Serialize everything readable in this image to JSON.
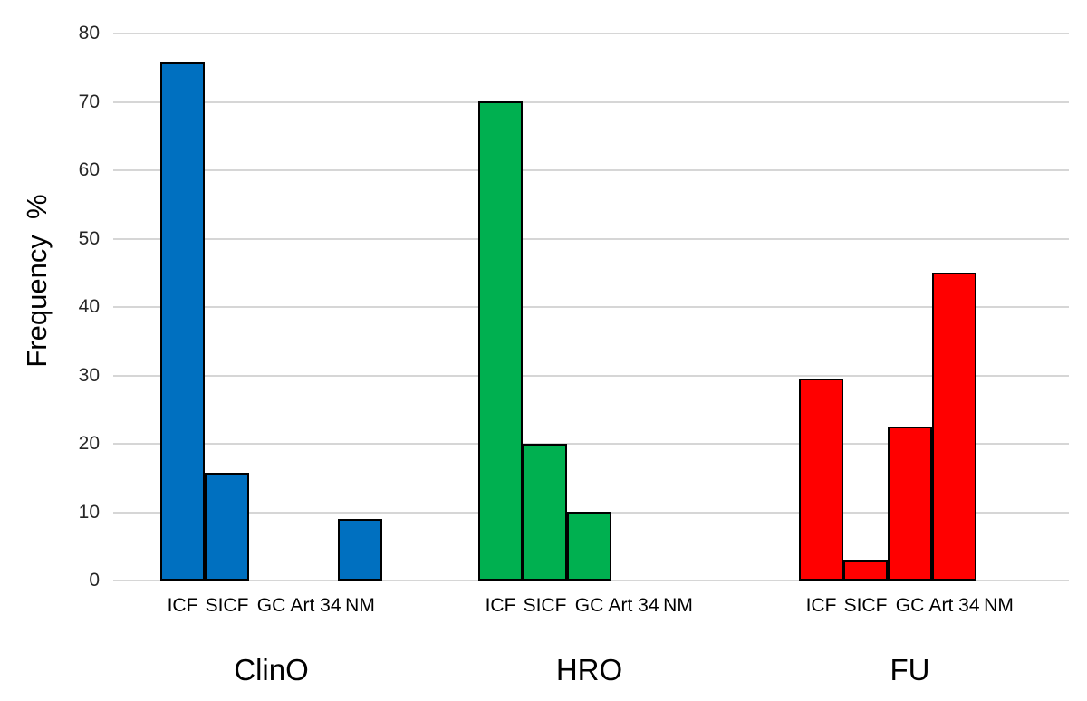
{
  "chart_data": {
    "type": "bar",
    "title": "",
    "xlabel": "",
    "ylabel": "Frequency  %",
    "ylim": [
      0,
      80
    ],
    "yticks": [
      0,
      10,
      20,
      30,
      40,
      50,
      60,
      70,
      80
    ],
    "grid": "horizontal",
    "gridline_color": "#D6D6D6",
    "legend_position": "none",
    "background_color": "#FFFFFF",
    "bar_border_color": "#000000",
    "categories": [
      "ICF",
      "SICF",
      "GC",
      "Art 34",
      "NM"
    ],
    "groups": [
      {
        "label": "ClinO",
        "color": "#0070C0",
        "values": [
          75.7,
          15.7,
          0,
          0,
          9
        ]
      },
      {
        "label": "HRO",
        "color": "#00B050",
        "values": [
          70,
          20,
          10,
          0,
          0
        ]
      },
      {
        "label": "FU",
        "color": "#FF0000",
        "values": [
          29.5,
          3,
          22.5,
          45,
          0
        ]
      }
    ]
  }
}
